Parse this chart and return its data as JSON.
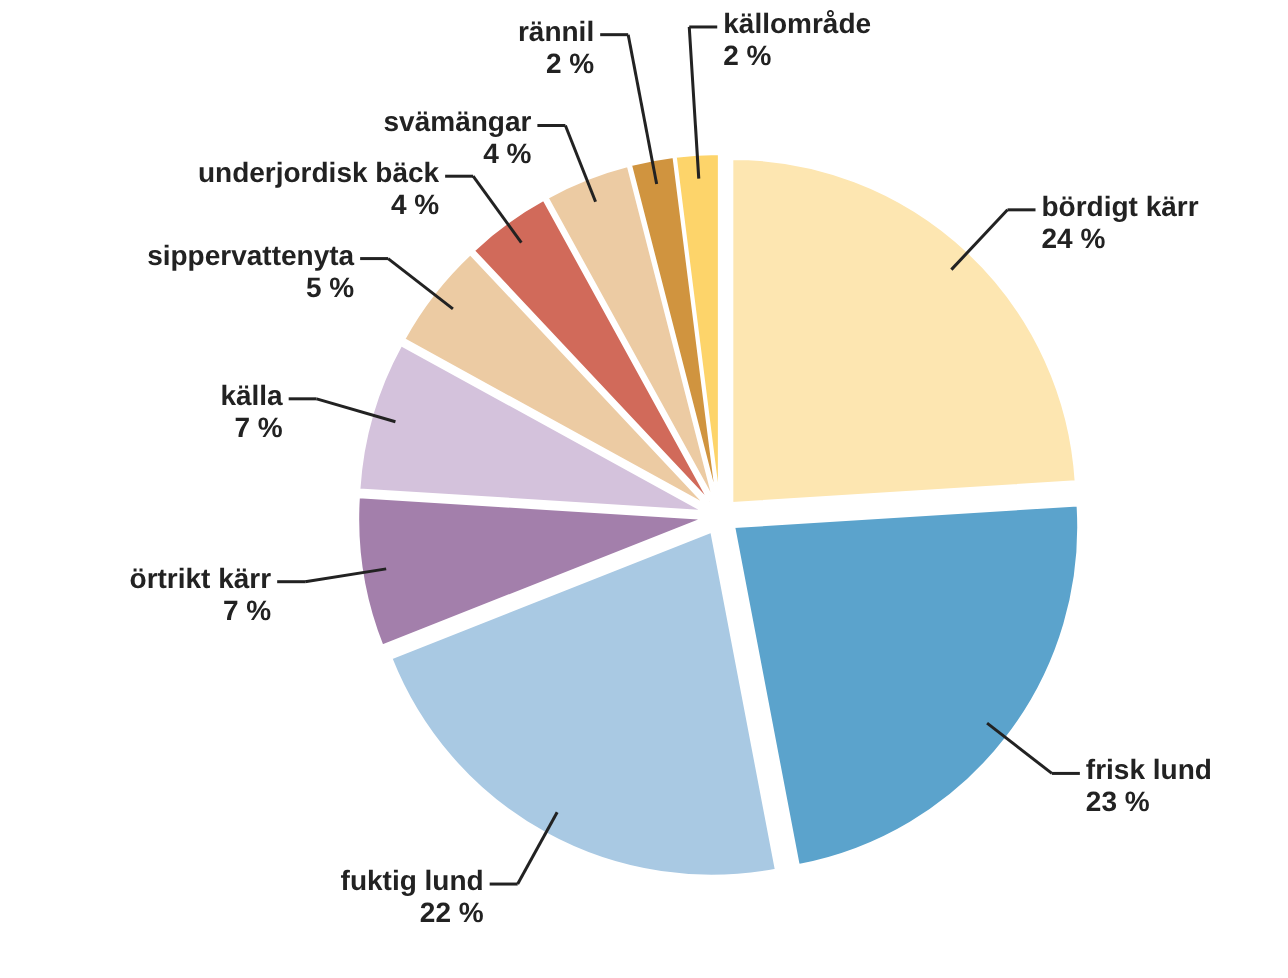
{
  "chart_data": {
    "type": "pie",
    "categories": [
      "bördigt kärr",
      "frisk lund",
      "fuktig lund",
      "örtrikt kärr",
      "källa",
      "sippervattenyta",
      "underjordisk bäck",
      "svämängar",
      "rännil",
      "källområde"
    ],
    "values": [
      24,
      23,
      22,
      7,
      7,
      5,
      4,
      4,
      2,
      2
    ],
    "value_labels": [
      "24 %",
      "23 %",
      "22 %",
      "7 %",
      "7 %",
      "5 %",
      "4 %",
      "4 %",
      "2 %",
      "2 %"
    ],
    "colors": [
      "#fde6b1",
      "#5ba3cc",
      "#a9c9e3",
      "#a37fab",
      "#d4c2dc",
      "#eccba3",
      "#d16a5a",
      "#eccba3",
      "#d0943f",
      "#fdd46a"
    ]
  }
}
